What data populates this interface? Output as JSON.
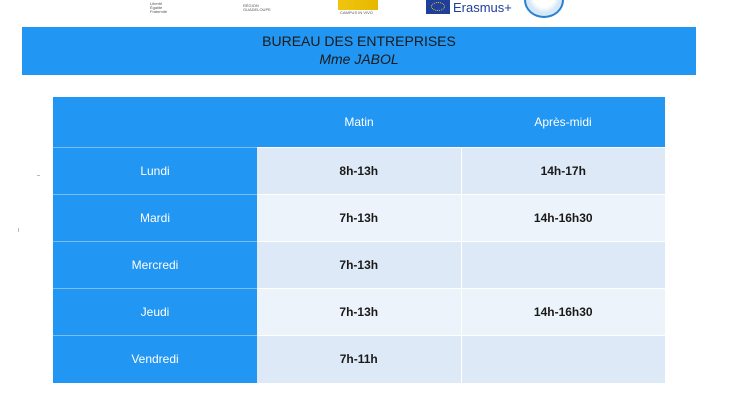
{
  "logos": {
    "logo1_text": [
      "Liberté",
      "Égalité",
      "Fraternité"
    ],
    "logo2_text": [
      "RÉGION",
      "GUADELOUPE"
    ],
    "logo3_text": "CAMPUS IN VIVO",
    "erasmus": "Erasmus+"
  },
  "header": {
    "title": "BUREAU DES ENTREPRISES",
    "subtitle": "Mme JABOL"
  },
  "table": {
    "columns": [
      "",
      "Matin",
      "Après-midi"
    ],
    "rows": [
      {
        "day": "Lundi",
        "morning": "8h-13h",
        "afternoon": "14h-17h"
      },
      {
        "day": "Mardi",
        "morning": "7h-13h",
        "afternoon": "14h-16h30"
      },
      {
        "day": "Mercredi",
        "morning": "7h-13h",
        "afternoon": ""
      },
      {
        "day": "Jeudi",
        "morning": "7h-13h",
        "afternoon": "14h-16h30"
      },
      {
        "day": "Vendredi",
        "morning": "7h-11h",
        "afternoon": ""
      }
    ]
  },
  "colors": {
    "accent_blue": "#2196f3",
    "row_light": "#dde9f6",
    "row_lighter": "#edf3fa"
  }
}
